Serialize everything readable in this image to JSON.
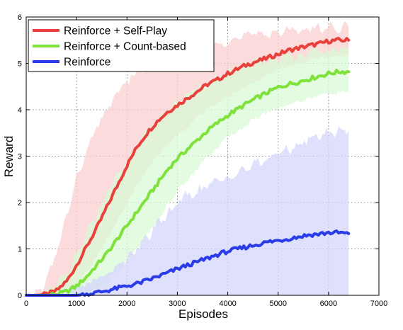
{
  "chart_data": {
    "type": "line",
    "xlabel": "Episodes",
    "ylabel": "Reward",
    "xlim": [
      0,
      7000
    ],
    "ylim": [
      0,
      6
    ],
    "xticks": [
      0,
      1000,
      2000,
      3000,
      4000,
      5000,
      6000,
      7000
    ],
    "yticks": [
      0,
      1,
      2,
      3,
      4,
      5,
      6
    ],
    "grid": true,
    "legend_position": "top-left",
    "x": [
      0,
      200,
      400,
      600,
      800,
      1000,
      1200,
      1400,
      1600,
      1800,
      2000,
      2200,
      2400,
      2600,
      2800,
      3000,
      3200,
      3400,
      3600,
      3800,
      4000,
      4200,
      4400,
      4600,
      4800,
      5000,
      5200,
      5400,
      5600,
      5800,
      6000,
      6200,
      6400
    ],
    "series": [
      {
        "name": "Reinforce + Self-Play",
        "color": "#e8413c",
        "band_color": "#f9cfcf",
        "values": [
          0.0,
          0.0,
          0.02,
          0.1,
          0.3,
          0.65,
          1.05,
          1.45,
          1.9,
          2.35,
          2.8,
          3.2,
          3.5,
          3.75,
          3.95,
          4.1,
          4.25,
          4.4,
          4.55,
          4.65,
          4.78,
          4.88,
          4.98,
          5.05,
          5.12,
          5.2,
          5.28,
          5.33,
          5.38,
          5.42,
          5.48,
          5.5,
          5.5
        ],
        "lower": [
          0.0,
          0.0,
          0.0,
          0.0,
          0.05,
          0.2,
          0.5,
          0.85,
          1.2,
          1.6,
          2.0,
          2.35,
          2.7,
          3.0,
          3.25,
          3.45,
          3.65,
          3.85,
          4.0,
          4.15,
          4.3,
          4.42,
          4.55,
          4.65,
          4.75,
          4.85,
          4.95,
          5.0,
          5.05,
          5.1,
          5.15,
          5.18,
          5.2
        ],
        "upper": [
          0.02,
          0.05,
          0.3,
          0.9,
          1.7,
          2.5,
          3.1,
          3.6,
          4.0,
          4.35,
          4.6,
          4.8,
          4.95,
          5.05,
          5.15,
          5.25,
          5.3,
          5.35,
          5.4,
          5.45,
          5.5,
          5.55,
          5.6,
          5.62,
          5.65,
          5.68,
          5.7,
          5.72,
          5.75,
          5.75,
          5.78,
          5.78,
          5.78
        ]
      },
      {
        "name": "Reinforce + Count-based",
        "color": "#7ee23a",
        "band_color": "#d9fad6",
        "values": [
          0.0,
          0.0,
          0.0,
          0.02,
          0.08,
          0.2,
          0.4,
          0.65,
          0.9,
          1.2,
          1.5,
          1.8,
          2.1,
          2.4,
          2.7,
          2.95,
          3.15,
          3.35,
          3.55,
          3.72,
          3.88,
          4.02,
          4.15,
          4.27,
          4.38,
          4.48,
          4.55,
          4.6,
          4.66,
          4.72,
          4.78,
          4.82,
          4.82
        ],
        "lower": [
          0.0,
          0.0,
          0.0,
          0.0,
          0.0,
          0.0,
          0.05,
          0.15,
          0.3,
          0.5,
          0.75,
          1.0,
          1.3,
          1.6,
          1.95,
          2.25,
          2.5,
          2.75,
          3.0,
          3.2,
          3.4,
          3.55,
          3.7,
          3.85,
          3.95,
          4.05,
          4.12,
          4.18,
          4.25,
          4.3,
          4.35,
          4.38,
          4.4
        ],
        "upper": [
          0.0,
          0.0,
          0.05,
          0.2,
          0.5,
          0.9,
          1.3,
          1.75,
          2.15,
          2.55,
          2.9,
          3.2,
          3.5,
          3.75,
          3.95,
          4.15,
          4.3,
          4.45,
          4.58,
          4.68,
          4.78,
          4.88,
          4.95,
          5.02,
          5.08,
          5.12,
          5.16,
          5.2,
          5.22,
          5.25,
          5.28,
          5.3,
          5.3
        ]
      },
      {
        "name": "Reinforce",
        "color": "#2a3be8",
        "band_color": "#d4d6fb",
        "values": [
          0.0,
          0.0,
          0.0,
          0.0,
          0.0,
          0.0,
          0.02,
          0.06,
          0.1,
          0.15,
          0.2,
          0.25,
          0.32,
          0.4,
          0.48,
          0.57,
          0.65,
          0.72,
          0.8,
          0.88,
          0.95,
          1.0,
          1.05,
          1.1,
          1.15,
          1.18,
          1.22,
          1.26,
          1.3,
          1.32,
          1.35,
          1.35,
          1.33
        ],
        "lower": [
          0.0,
          0.0,
          0.0,
          0.0,
          0.0,
          0.0,
          0.0,
          0.0,
          0.0,
          0.0,
          0.0,
          0.0,
          0.0,
          0.0,
          0.0,
          0.0,
          0.0,
          0.0,
          0.0,
          0.0,
          0.0,
          0.0,
          0.0,
          0.0,
          0.0,
          0.0,
          0.0,
          0.0,
          0.0,
          0.0,
          0.0,
          0.0,
          0.0
        ],
        "upper": [
          0.0,
          0.0,
          0.0,
          0.0,
          0.05,
          0.15,
          0.25,
          0.35,
          0.45,
          0.6,
          0.8,
          1.0,
          1.25,
          1.5,
          1.75,
          2.0,
          2.15,
          2.25,
          2.35,
          2.45,
          2.55,
          2.65,
          2.75,
          2.85,
          2.95,
          3.05,
          3.15,
          3.25,
          3.35,
          3.45,
          3.5,
          3.55,
          3.55
        ]
      }
    ]
  }
}
